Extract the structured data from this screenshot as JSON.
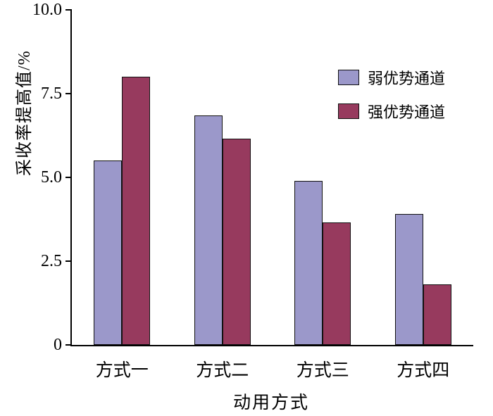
{
  "chart_data": {
    "type": "bar",
    "categories": [
      "方式一",
      "方式二",
      "方式三",
      "方式四"
    ],
    "series": [
      {
        "name": "弱优势通道",
        "color": "#9b98ca",
        "values": [
          5.5,
          6.85,
          4.9,
          3.9
        ]
      },
      {
        "name": "强优势通道",
        "color": "#973a5e",
        "values": [
          8.0,
          6.15,
          3.65,
          1.8
        ]
      }
    ],
    "title": "",
    "xlabel": "动用方式",
    "ylabel": "采收率提高值/%",
    "ylim": [
      0,
      10.0
    ],
    "yticks": [
      0,
      2.5,
      5.0,
      7.5,
      10.0
    ],
    "ytick_labels": [
      "0",
      "2.5",
      "5.0",
      "7.5",
      "10.0"
    ],
    "legend_position": "upper-right",
    "grid": false,
    "bar_outline_color": "#111111",
    "axis_color": "#000000"
  }
}
